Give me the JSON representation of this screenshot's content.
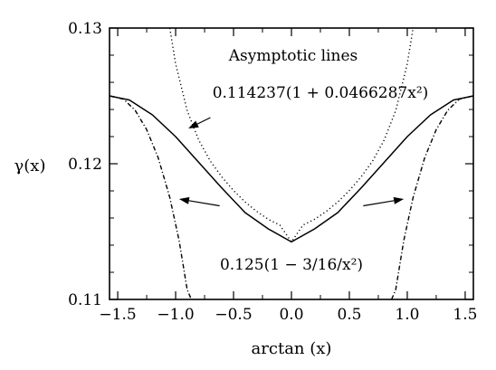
{
  "chart_data": {
    "type": "line",
    "title": "",
    "xlabel": "arctan (x)",
    "ylabel": "γ(x)",
    "xlim": [
      -1.5708,
      1.5708
    ],
    "ylim": [
      0.11,
      0.13
    ],
    "x_ticks": [
      {
        "value": -1.5,
        "label": "−1.5"
      },
      {
        "value": -1.0,
        "label": "−1.0"
      },
      {
        "value": -0.5,
        "label": "−0.5"
      },
      {
        "value": 0.0,
        "label": "0.0"
      },
      {
        "value": 0.5,
        "label": "0.5"
      },
      {
        "value": 1.0,
        "label": "1.0"
      },
      {
        "value": 1.5,
        "label": "1.5"
      }
    ],
    "y_ticks": [
      {
        "value": 0.11,
        "label": "0.11"
      },
      {
        "value": 0.12,
        "label": "0.12"
      },
      {
        "value": 0.13,
        "label": "0.13"
      }
    ],
    "grid": false,
    "series": [
      {
        "style": "solid",
        "color": "#000000",
        "x": [
          -1.5708,
          -1.4,
          -1.2,
          -1.0,
          -0.8,
          -0.6,
          -0.4,
          -0.2,
          0.0,
          0.2,
          0.4,
          0.6,
          0.8,
          1.0,
          1.2,
          1.4,
          1.5708
        ],
        "y": [
          0.125,
          0.1247,
          0.1236,
          0.122,
          0.1201,
          0.1182,
          0.1164,
          0.1152,
          0.11424,
          0.1152,
          0.1164,
          0.1182,
          0.1201,
          0.122,
          0.1236,
          0.1247,
          0.125
        ]
      },
      {
        "style": "dotted",
        "color": "#000000",
        "x": [
          -1.05,
          -1.0,
          -0.9,
          -0.8,
          -0.7,
          -0.6,
          -0.5,
          -0.4,
          -0.3,
          -0.2,
          -0.1,
          0.0,
          0.1,
          0.2,
          0.3,
          0.4,
          0.5,
          0.6,
          0.7,
          0.8,
          0.9,
          1.0,
          1.05
        ],
        "y": [
          0.13,
          0.12737,
          0.12391,
          0.12174,
          0.12019,
          0.11902,
          0.11803,
          0.11718,
          0.11649,
          0.11591,
          0.11548,
          0.11424,
          0.11548,
          0.11591,
          0.11649,
          0.11718,
          0.11803,
          0.11902,
          0.12019,
          0.12174,
          0.12391,
          0.12737,
          0.13
        ]
      },
      {
        "style": "dash-dot",
        "color": "#000000",
        "x": [
          -1.5708,
          -1.45,
          -1.35,
          -1.25,
          -1.15,
          -1.05,
          -0.97,
          -0.9,
          -0.864
        ],
        "y": [
          0.125,
          0.12476,
          0.12394,
          0.12252,
          0.12044,
          0.11751,
          0.11434,
          0.11072,
          0.11
        ]
      },
      {
        "style": "dash-dot",
        "color": "#000000",
        "x": [
          0.864,
          0.9,
          0.97,
          1.05,
          1.15,
          1.25,
          1.35,
          1.45,
          1.5708
        ],
        "y": [
          0.11,
          0.11072,
          0.11434,
          0.11751,
          0.12044,
          0.12252,
          0.12394,
          0.12476,
          0.125
        ]
      }
    ],
    "annotations": {
      "title_text": "Asymptotic lines",
      "upper_formula": "0.114237(1 + 0.0466287x²)",
      "lower_formula": "0.125(1 − 3/16/x²)"
    },
    "arrows": [
      {
        "from": [
          -0.7,
          0.1234
        ],
        "to": [
          -0.89,
          0.1226
        ]
      },
      {
        "from": [
          -0.62,
          0.1169
        ],
        "to": [
          -0.97,
          0.1174
        ]
      },
      {
        "from": [
          0.62,
          0.1169
        ],
        "to": [
          0.97,
          0.1174
        ]
      }
    ]
  }
}
